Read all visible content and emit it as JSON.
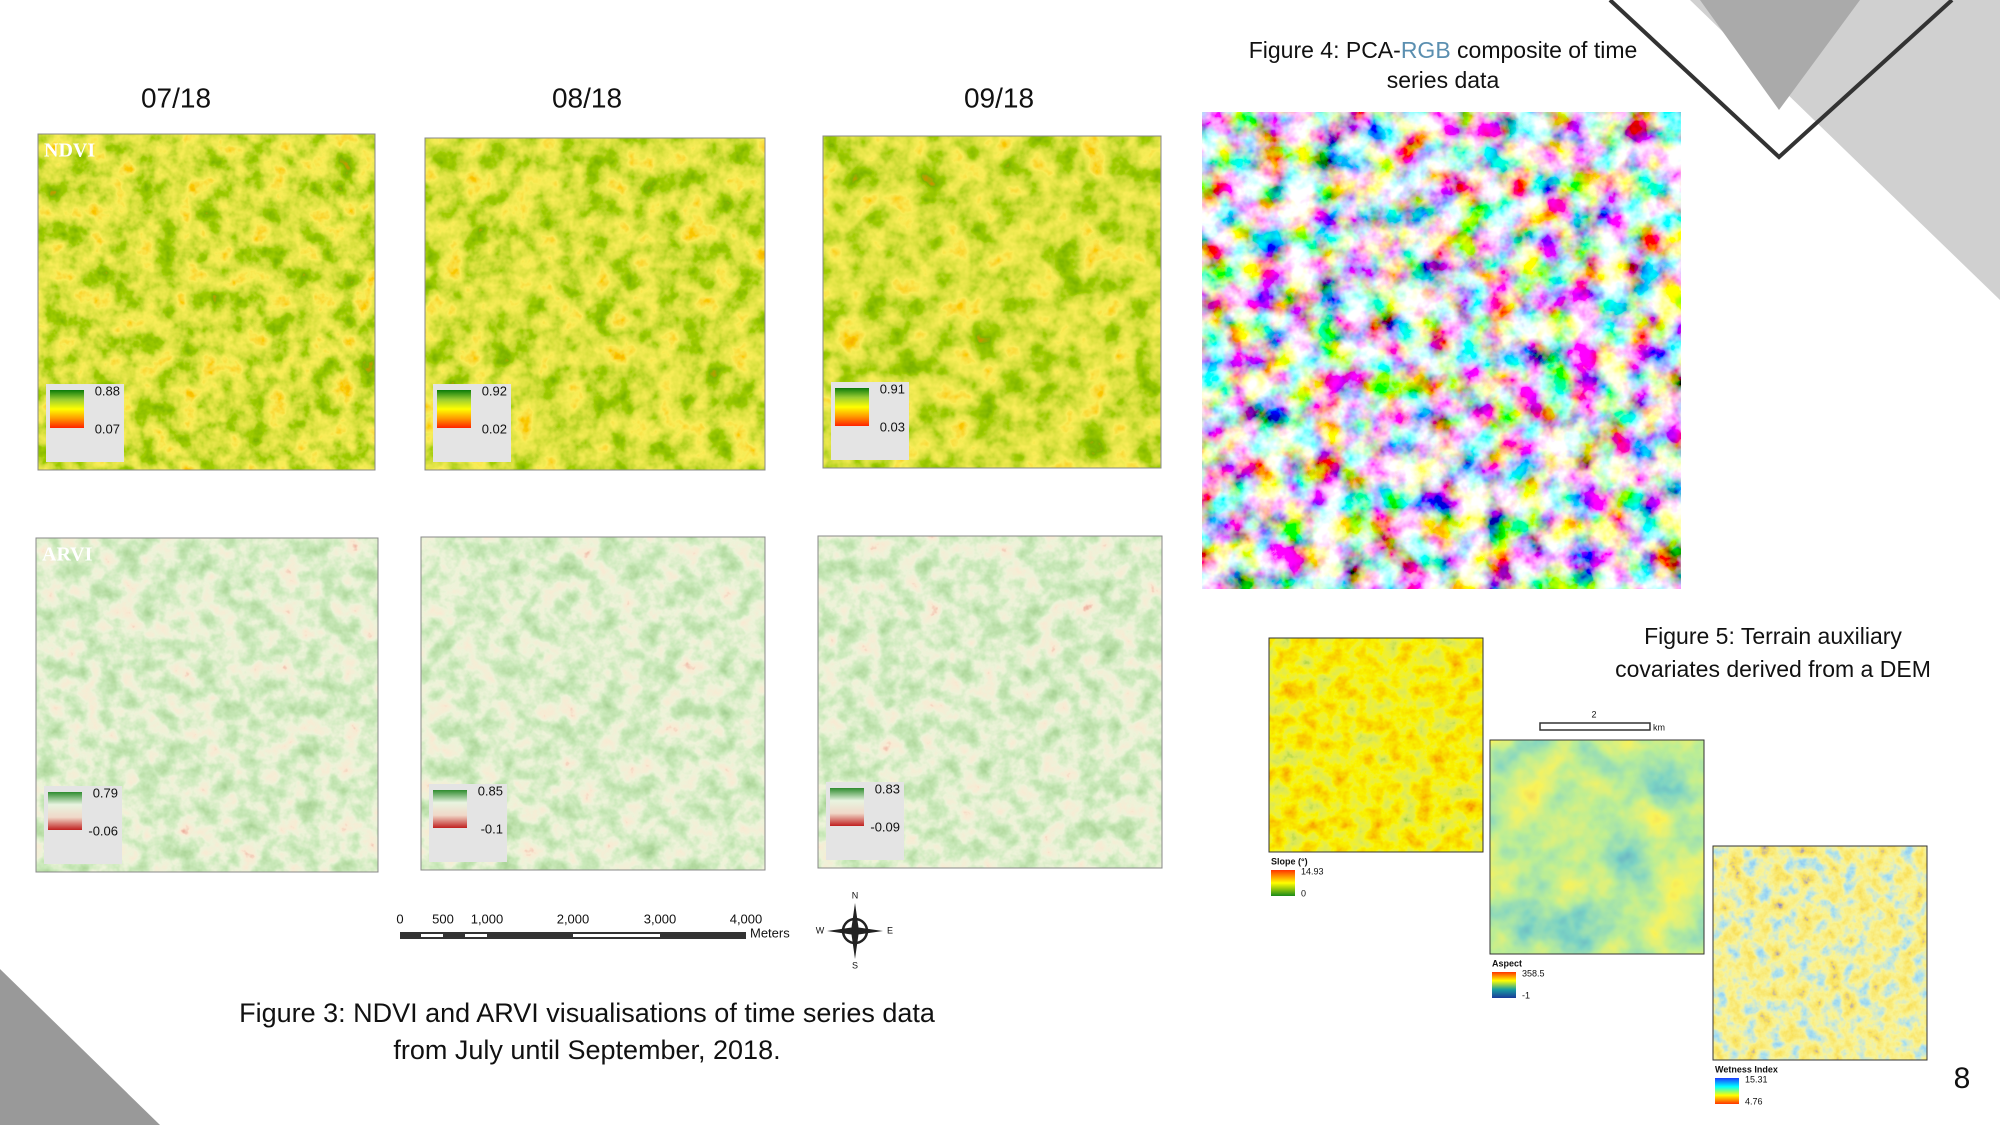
{
  "figure3": {
    "columns": [
      "07/18",
      "08/18",
      "09/18"
    ],
    "rows": [
      {
        "label": "NDVI",
        "legends": [
          {
            "max": 0.88,
            "min": 0.07
          },
          {
            "max": 0.92,
            "min": 0.02
          },
          {
            "max": 0.91,
            "min": 0.03
          }
        ]
      },
      {
        "label": "ARVI",
        "legends": [
          {
            "max": 0.79,
            "min": -0.06
          },
          {
            "max": 0.85,
            "min": -0.1
          },
          {
            "max": 0.83,
            "min": -0.09
          }
        ]
      }
    ],
    "scale_bar": {
      "ticks": [
        "0",
        "500",
        "1,000",
        "2,000",
        "3,000",
        "4,000"
      ],
      "unit": "Meters"
    },
    "compass": {
      "n": "N",
      "e": "E",
      "s": "S",
      "w": "W"
    },
    "caption": [
      "Figure 3: NDVI and ARVI visualisations of time series data",
      "from July until September, 2018."
    ]
  },
  "figure4": {
    "caption_prefix": "Figure 4: PCA-",
    "caption_highlight": "RGB",
    "caption_rest": " composite of time",
    "caption_line2": "series data"
  },
  "figure5": {
    "caption": [
      "Figure 5: Terrain auxiliary",
      "covariates derived from a DEM"
    ],
    "scale_bar": {
      "label": "2",
      "unit": "km"
    },
    "panels": [
      {
        "title": "Slope (°)",
        "max": 14.93,
        "min": 0
      },
      {
        "title": "Aspect",
        "max": 358.5,
        "min": -1
      },
      {
        "title": "Wetness Index",
        "max": 15.31,
        "min": 4.76
      }
    ]
  },
  "page_number": "8"
}
